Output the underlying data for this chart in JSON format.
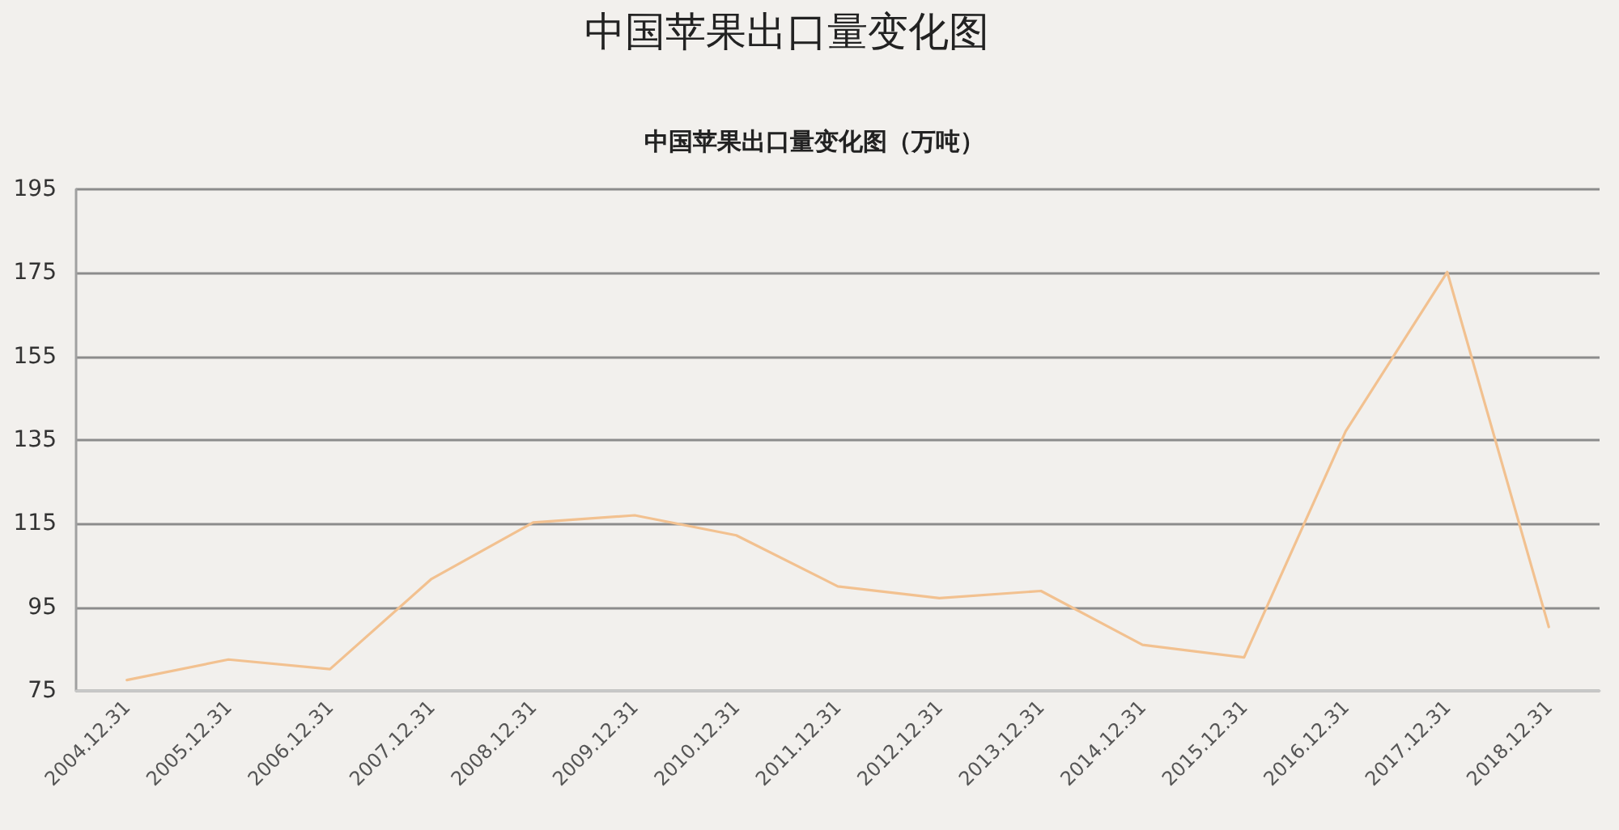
{
  "chart_data": {
    "type": "line",
    "title": "中国苹果出口量变化图",
    "subtitle": "中国苹果出口量变化图（万吨）",
    "categories": [
      "2004.12.31",
      "2005.12.31",
      "2006.12.31",
      "2007.12.31",
      "2008.12.31",
      "2009.12.31",
      "2010.12.31",
      "2011.12.31",
      "2012.12.31",
      "2013.12.31",
      "2014.12.31",
      "2015.12.31",
      "2016.12.31",
      "2017.12.31",
      "2018.12.31"
    ],
    "values": [
      77.6,
      82.5,
      80.2,
      101.8,
      115.3,
      117.0,
      112.2,
      100.0,
      97.2,
      98.9,
      86.0,
      83.0,
      137.1,
      175.2,
      90.3
    ],
    "color": "#f2c190",
    "ylim": [
      75,
      195
    ],
    "yticks": [
      75,
      95,
      115,
      135,
      155,
      175,
      195
    ],
    "grid": "y",
    "marker": "none",
    "line_style": "solid"
  }
}
